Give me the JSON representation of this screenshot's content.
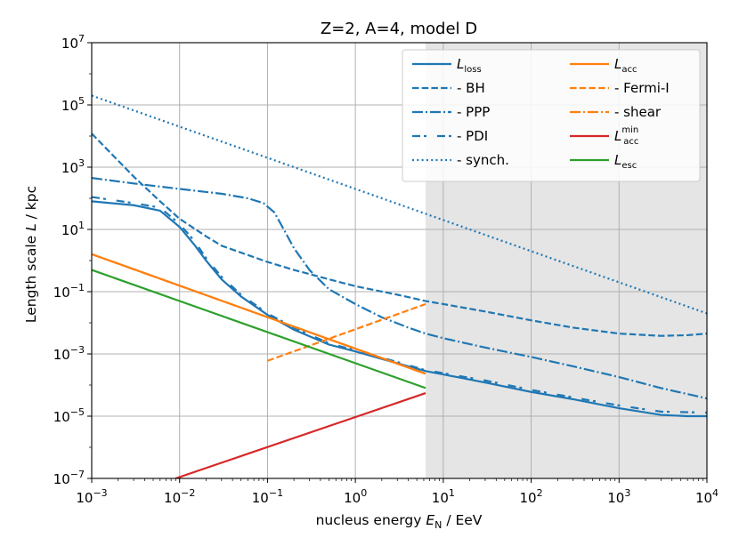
{
  "chart_data": {
    "type": "line",
    "title": "Z=2, A=4, model D",
    "xlabel": "nucleus energy E_N / EeV",
    "xlabel_parts": {
      "pre": "nucleus energy ",
      "sym": "E",
      "sub": "N",
      "post": " / EeV"
    },
    "ylabel": "Length scale L / kpc",
    "ylabel_parts": {
      "pre": "Length scale ",
      "sym": "L",
      "post": " / kpc"
    },
    "xscale": "log",
    "yscale": "log",
    "xlim": [
      0.001,
      10000
    ],
    "ylim": [
      1e-07,
      10000000.0
    ],
    "grid": true,
    "x_ticks": [
      {
        "value": 0.001,
        "base": "10",
        "exp": "−3"
      },
      {
        "value": 0.01,
        "base": "10",
        "exp": "−2"
      },
      {
        "value": 0.1,
        "base": "10",
        "exp": "−1"
      },
      {
        "value": 1,
        "base": "10",
        "exp": "0"
      },
      {
        "value": 10,
        "base": "10",
        "exp": "1"
      },
      {
        "value": 100,
        "base": "10",
        "exp": "2"
      },
      {
        "value": 1000,
        "base": "10",
        "exp": "3"
      },
      {
        "value": 10000,
        "base": "10",
        "exp": "4"
      }
    ],
    "y_ticks": [
      {
        "value": 1e-07,
        "base": "10",
        "exp": "−7"
      },
      {
        "value": 1e-05,
        "base": "10",
        "exp": "−5"
      },
      {
        "value": 0.001,
        "base": "10",
        "exp": "−3"
      },
      {
        "value": 0.1,
        "base": "10",
        "exp": "−1"
      },
      {
        "value": 10,
        "base": "10",
        "exp": "1"
      },
      {
        "value": 1000,
        "base": "10",
        "exp": "3"
      },
      {
        "value": 100000,
        "base": "10",
        "exp": "5"
      },
      {
        "value": 10000000,
        "base": "10",
        "exp": "7"
      }
    ],
    "shaded_region": {
      "x_from": 6.3,
      "x_to": 10000,
      "color": "#e5e5e5"
    },
    "legend_location": "upper right",
    "colors": {
      "loss": "#1f77b4",
      "acc": "#ff7f0e",
      "acc_min": "#d62728",
      "esc": "#2ca02c"
    },
    "series": [
      {
        "id": "L_loss",
        "label_main": "L",
        "label_sub": "loss",
        "label_sup": "",
        "color": "#1f77b4",
        "style": "solid",
        "points": [
          [
            0.001,
            80
          ],
          [
            0.003,
            60
          ],
          [
            0.006,
            40
          ],
          [
            0.01,
            12
          ],
          [
            0.015,
            3
          ],
          [
            0.02,
            1
          ],
          [
            0.03,
            0.25
          ],
          [
            0.05,
            0.07
          ],
          [
            0.1,
            0.018
          ],
          [
            0.2,
            0.006
          ],
          [
            0.5,
            0.002
          ],
          [
            1,
            0.0012
          ],
          [
            3,
            0.0005
          ],
          [
            6.3,
            0.00028
          ],
          [
            10,
            0.00022
          ],
          [
            30,
            0.00012
          ],
          [
            100,
            6e-05
          ],
          [
            300,
            3.5e-05
          ],
          [
            1000,
            1.8e-05
          ],
          [
            3000,
            1.1e-05
          ],
          [
            6000,
            1e-05
          ],
          [
            10000,
            1e-05
          ]
        ]
      },
      {
        "id": "L_BH",
        "label_main": "",
        "label_sub": "",
        "label_sup": "",
        "label_text": "- BH",
        "color": "#1f77b4",
        "style": "dashed",
        "points": [
          [
            0.001,
            12000
          ],
          [
            0.003,
            500
          ],
          [
            0.006,
            80
          ],
          [
            0.01,
            22
          ],
          [
            0.02,
            6
          ],
          [
            0.03,
            3
          ],
          [
            0.05,
            1.8
          ],
          [
            0.1,
            0.9
          ],
          [
            0.2,
            0.5
          ],
          [
            0.5,
            0.25
          ],
          [
            1,
            0.15
          ],
          [
            3,
            0.08
          ],
          [
            6.3,
            0.05
          ],
          [
            10,
            0.04
          ],
          [
            30,
            0.023
          ],
          [
            100,
            0.012
          ],
          [
            300,
            0.007
          ],
          [
            1000,
            0.0045
          ],
          [
            3000,
            0.0038
          ],
          [
            6000,
            0.004
          ],
          [
            10000,
            0.0045
          ]
        ]
      },
      {
        "id": "L_PPP",
        "label_main": "",
        "label_sub": "",
        "label_sup": "",
        "label_text": "- PPP",
        "color": "#1f77b4",
        "style": "dashdot",
        "points": [
          [
            0.001,
            450
          ],
          [
            0.003,
            300
          ],
          [
            0.01,
            200
          ],
          [
            0.03,
            140
          ],
          [
            0.06,
            100
          ],
          [
            0.09,
            70
          ],
          [
            0.12,
            35
          ],
          [
            0.16,
            8
          ],
          [
            0.2,
            2.5
          ],
          [
            0.3,
            0.5
          ],
          [
            0.5,
            0.12
          ],
          [
            1,
            0.04
          ],
          [
            2,
            0.015
          ],
          [
            4,
            0.007
          ],
          [
            6.3,
            0.0045
          ],
          [
            10,
            0.0032
          ],
          [
            30,
            0.0016
          ],
          [
            100,
            0.0008
          ],
          [
            300,
            0.0004
          ],
          [
            1000,
            0.00018
          ],
          [
            3000,
            8e-05
          ],
          [
            10000,
            3.7e-05
          ]
        ]
      },
      {
        "id": "L_PDI",
        "label_main": "",
        "label_sub": "",
        "label_sup": "",
        "label_text": "- PDI",
        "color": "#1f77b4",
        "style": "loosedash",
        "points": [
          [
            0.001,
            110
          ],
          [
            0.003,
            70
          ],
          [
            0.006,
            50
          ],
          [
            0.01,
            15
          ],
          [
            0.015,
            4
          ],
          [
            0.02,
            1.2
          ],
          [
            0.03,
            0.3
          ],
          [
            0.05,
            0.08
          ],
          [
            0.1,
            0.02
          ],
          [
            0.2,
            0.007
          ],
          [
            0.5,
            0.0022
          ],
          [
            1,
            0.0013
          ],
          [
            3,
            0.00055
          ],
          [
            6.3,
            0.0003
          ],
          [
            10,
            0.00024
          ],
          [
            30,
            0.00014
          ],
          [
            100,
            7e-05
          ],
          [
            300,
            4e-05
          ],
          [
            1000,
            2.2e-05
          ],
          [
            3000,
            1.4e-05
          ],
          [
            10000,
            1.3e-05
          ]
        ]
      },
      {
        "id": "L_synch",
        "label_main": "",
        "label_sub": "",
        "label_sup": "",
        "label_text": "- synch.",
        "color": "#1f77b4",
        "style": "dotted",
        "points": [
          [
            0.001,
            200000
          ],
          [
            10000,
            0.02
          ]
        ]
      },
      {
        "id": "L_acc",
        "label_main": "L",
        "label_sub": "acc",
        "label_sup": "",
        "color": "#ff7f0e",
        "style": "solid",
        "points": [
          [
            0.001,
            1.6
          ],
          [
            6.3,
            0.00023
          ]
        ]
      },
      {
        "id": "L_FermiI",
        "label_main": "",
        "label_sub": "",
        "label_sup": "",
        "label_text": "- Fermi-I",
        "color": "#ff7f0e",
        "style": "dashed",
        "points": [
          [
            0.1,
            0.0006
          ],
          [
            6.3,
            0.04
          ]
        ]
      },
      {
        "id": "L_shear",
        "label_main": "",
        "label_sub": "",
        "label_sup": "",
        "label_text": "- shear",
        "color": "#ff7f0e",
        "style": "dashdot",
        "points": [
          [
            0.001,
            1.6
          ],
          [
            6.3,
            0.00023
          ]
        ]
      },
      {
        "id": "L_acc_min",
        "label_main": "L",
        "label_sub": "acc",
        "label_sup": "min",
        "color": "#d62728",
        "style": "solid",
        "points": [
          [
            0.009,
            1e-07
          ],
          [
            6.3,
            5.5e-05
          ]
        ]
      },
      {
        "id": "L_esc",
        "label_main": "L",
        "label_sub": "esc",
        "label_sup": "",
        "color": "#2ca02c",
        "style": "solid",
        "points": [
          [
            0.001,
            0.5
          ],
          [
            6.3,
            8e-05
          ]
        ]
      }
    ],
    "legend_order": [
      [
        "L_loss",
        "L_BH",
        "L_PPP",
        "L_PDI",
        "L_synch"
      ],
      [
        "L_acc",
        "L_FermiI",
        "L_shear",
        "L_acc_min",
        "L_esc"
      ]
    ]
  }
}
